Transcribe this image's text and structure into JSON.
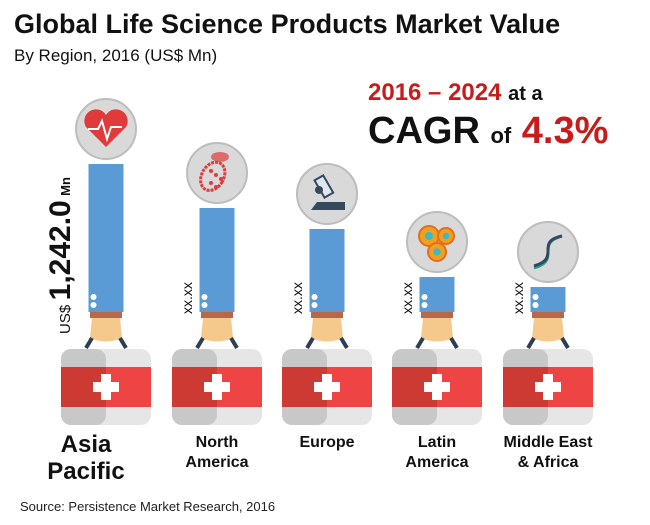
{
  "title": "Global Life Science Products Market Value",
  "subtitle": "By Region, 2016 (US$ Mn)",
  "cagr": {
    "years": "2016 – 2024",
    "at_a": "at a",
    "cagr_word": "CAGR",
    "of": "of",
    "value": "4.3%"
  },
  "source": "Source: Persistence Market Research, 2016",
  "colors": {
    "bar": "#5b9bd5",
    "accent": "#c81c1c",
    "case_red": "#e84040"
  },
  "chart_data": {
    "type": "bar",
    "title": "Global Life Science Products Market Value",
    "subtitle": "By Region, 2016 (US$ Mn)",
    "categories": [
      "Asia Pacific",
      "North America",
      "Europe",
      "Latin America",
      "Middle East & Africa"
    ],
    "label_lines": [
      [
        "Asia",
        "Pacific"
      ],
      [
        "North",
        "America"
      ],
      [
        "Europe",
        ""
      ],
      [
        "Latin",
        "America"
      ],
      [
        "Middle East",
        "& Africa"
      ]
    ],
    "values": [
      1242.0,
      873,
      697,
      294,
      210
    ],
    "value_labels": [
      "1,242.0",
      "xx.xx",
      "xx.xx",
      "xx.xx",
      "xx.xx"
    ],
    "value_prefix": "US$",
    "value_suffix": "Mn",
    "icons": [
      "heart-pulse-icon",
      "bacteria-icon",
      "microscope-icon",
      "cells-icon",
      "dna-icon"
    ],
    "xlabel": "",
    "ylabel": "",
    "ylim": [
      0,
      1242
    ],
    "grid": false
  }
}
